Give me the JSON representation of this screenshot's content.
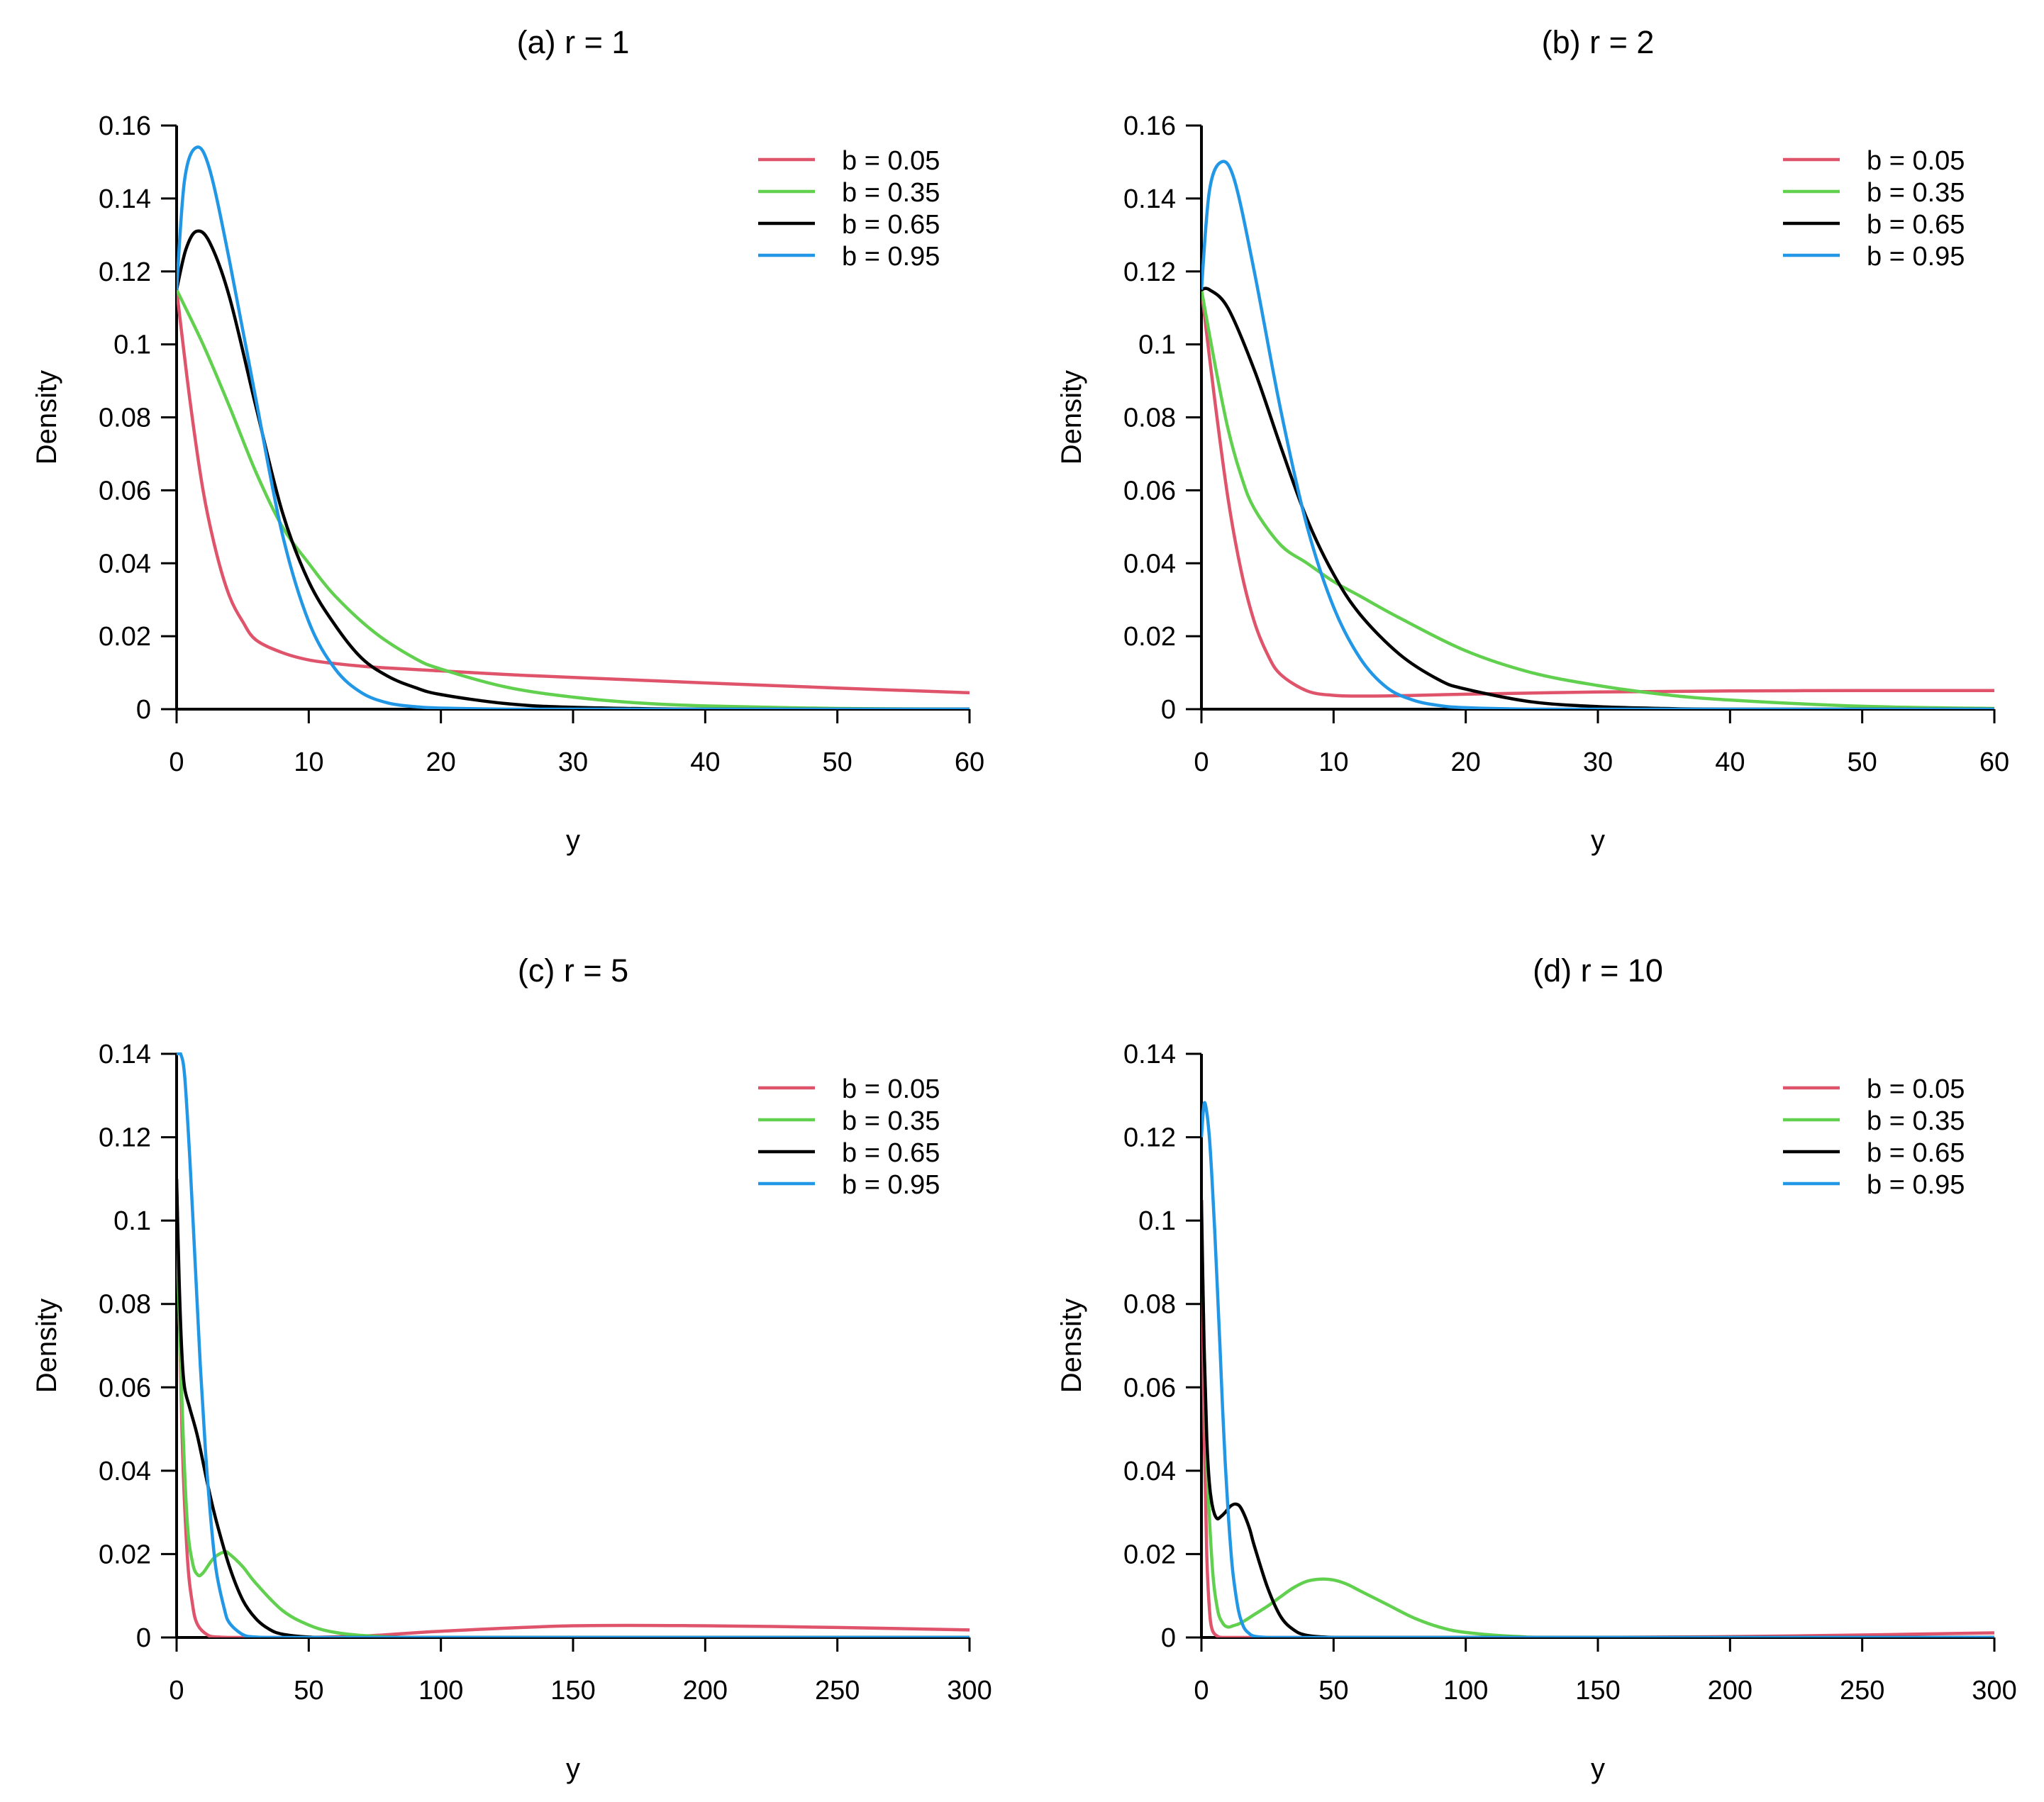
{
  "chart_data": [
    {
      "type": "line",
      "title": "(a) r = 1",
      "xlabel": "y",
      "ylabel": "Density",
      "xlim": [
        0,
        60
      ],
      "ylim": [
        0,
        0.16
      ],
      "xticks": [
        "0",
        "10",
        "20",
        "30",
        "40",
        "50",
        "60"
      ],
      "yticks": [
        "0",
        "0.02",
        "0.04",
        "0.06",
        "0.08",
        "0.1",
        "0.12",
        "0.14",
        "0.16"
      ],
      "legend_position": "top-right",
      "series": [
        {
          "name": "b = 0.05",
          "color": "#DF536B",
          "x": [
            0,
            1,
            2,
            3,
            4,
            5,
            6,
            8,
            10,
            12,
            15,
            20,
            25,
            30,
            40,
            50,
            60
          ],
          "y": [
            0.115,
            0.085,
            0.06,
            0.043,
            0.031,
            0.024,
            0.019,
            0.0155,
            0.0135,
            0.0125,
            0.0115,
            0.0105,
            0.0095,
            0.0087,
            0.0072,
            0.0058,
            0.0045
          ]
        },
        {
          "name": "b = 0.35",
          "color": "#61D04F",
          "x": [
            0,
            2,
            4,
            6,
            8,
            10,
            12,
            15,
            18,
            20,
            25,
            30,
            35,
            40,
            50,
            60
          ],
          "y": [
            0.115,
            0.1,
            0.083,
            0.065,
            0.05,
            0.04,
            0.031,
            0.021,
            0.014,
            0.011,
            0.006,
            0.0033,
            0.0017,
            0.0009,
            0.0002,
            0.0
          ]
        },
        {
          "name": "b = 0.65",
          "color": "#000000",
          "x": [
            0,
            0.7,
            1.5,
            2.5,
            4,
            6,
            8,
            10,
            12,
            14,
            16,
            18,
            20,
            25,
            30,
            40,
            60
          ],
          "y": [
            0.115,
            0.126,
            0.131,
            0.128,
            0.113,
            0.083,
            0.054,
            0.035,
            0.023,
            0.014,
            0.009,
            0.006,
            0.004,
            0.0015,
            0.0005,
            0.0,
            0.0
          ]
        },
        {
          "name": "b = 0.95",
          "color": "#2297E6",
          "x": [
            0,
            0.6,
            1.5,
            2.5,
            4,
            6,
            8,
            10,
            12,
            14,
            16,
            18,
            20,
            25,
            30,
            40,
            60
          ],
          "y": [
            0.115,
            0.145,
            0.154,
            0.148,
            0.123,
            0.085,
            0.048,
            0.024,
            0.011,
            0.0045,
            0.0017,
            0.0007,
            0.0003,
            0.0,
            0.0,
            0.0,
            0.0
          ]
        }
      ]
    },
    {
      "type": "line",
      "title": "(b) r = 2",
      "xlabel": "y",
      "ylabel": "Density",
      "xlim": [
        0,
        60
      ],
      "ylim": [
        0,
        0.16
      ],
      "xticks": [
        "0",
        "10",
        "20",
        "30",
        "40",
        "50",
        "60"
      ],
      "yticks": [
        "0",
        "0.02",
        "0.04",
        "0.06",
        "0.08",
        "0.1",
        "0.12",
        "0.14",
        "0.16"
      ],
      "legend_position": "top-right",
      "series": [
        {
          "name": "b = 0.05",
          "color": "#DF536B",
          "x": [
            0,
            1,
            2,
            3,
            4,
            5,
            6,
            8,
            10,
            12,
            15,
            20,
            30,
            40,
            50,
            60
          ],
          "y": [
            0.115,
            0.085,
            0.058,
            0.038,
            0.024,
            0.015,
            0.0095,
            0.005,
            0.0038,
            0.0036,
            0.0037,
            0.0041,
            0.0047,
            0.005,
            0.0051,
            0.0051
          ]
        },
        {
          "name": "b = 0.35",
          "color": "#61D04F",
          "x": [
            0,
            1,
            2,
            3,
            4,
            6,
            8,
            10,
            12,
            15,
            20,
            25,
            30,
            35,
            40,
            50,
            60
          ],
          "y": [
            0.115,
            0.095,
            0.077,
            0.064,
            0.055,
            0.045,
            0.04,
            0.035,
            0.031,
            0.025,
            0.016,
            0.01,
            0.0065,
            0.004,
            0.0025,
            0.0008,
            0.0002
          ]
        },
        {
          "name": "b = 0.65",
          "color": "#000000",
          "x": [
            0,
            0.6,
            2,
            4,
            6,
            8,
            10,
            12,
            15,
            18,
            20,
            25,
            30,
            35,
            40,
            60
          ],
          "y": [
            0.115,
            0.115,
            0.11,
            0.093,
            0.072,
            0.052,
            0.037,
            0.026,
            0.015,
            0.008,
            0.0055,
            0.002,
            0.0007,
            0.0002,
            0.0,
            0.0
          ]
        },
        {
          "name": "b = 0.95",
          "color": "#2297E6",
          "x": [
            0,
            0.6,
            1.5,
            2.5,
            4,
            6,
            8,
            10,
            12,
            14,
            16,
            18,
            20,
            25,
            30,
            60
          ],
          "y": [
            0.115,
            0.142,
            0.15,
            0.145,
            0.12,
            0.082,
            0.05,
            0.028,
            0.014,
            0.006,
            0.0025,
            0.001,
            0.0004,
            0.0,
            0.0,
            0.0
          ]
        }
      ]
    },
    {
      "type": "line",
      "title": "(c) r = 5",
      "xlabel": "y",
      "ylabel": "Density",
      "xlim": [
        0,
        300
      ],
      "ylim": [
        0,
        0.14
      ],
      "xticks": [
        "0",
        "50",
        "100",
        "150",
        "200",
        "250",
        "300"
      ],
      "yticks": [
        "0",
        "0.02",
        "0.04",
        "0.06",
        "0.08",
        "0.1",
        "0.12",
        "0.14"
      ],
      "legend_position": "top-right",
      "series": [
        {
          "name": "b = 0.05",
          "color": "#DF536B",
          "x": [
            0,
            2,
            4,
            6,
            8,
            12,
            16,
            20,
            30,
            50,
            75,
            100,
            150,
            200,
            250,
            300
          ],
          "y": [
            0.11,
            0.05,
            0.02,
            0.008,
            0.003,
            0.0005,
            0.0001,
            0.0,
            0.0,
            0.0,
            0.0005,
            0.0015,
            0.0028,
            0.0028,
            0.0024,
            0.0018
          ]
        },
        {
          "name": "b = 0.35",
          "color": "#61D04F",
          "x": [
            0,
            2,
            4,
            6,
            8,
            10,
            14,
            18,
            20,
            25,
            30,
            40,
            50,
            60,
            75,
            100,
            300
          ],
          "y": [
            0.1,
            0.057,
            0.028,
            0.018,
            0.015,
            0.0155,
            0.019,
            0.0205,
            0.02,
            0.017,
            0.013,
            0.0065,
            0.003,
            0.0012,
            0.0003,
            0.0,
            0.0
          ]
        },
        {
          "name": "b = 0.65",
          "color": "#000000",
          "x": [
            0,
            1,
            2,
            3,
            5,
            8,
            12,
            15,
            20,
            25,
            30,
            35,
            40,
            50,
            60,
            300
          ],
          "y": [
            0.11,
            0.085,
            0.068,
            0.06,
            0.055,
            0.048,
            0.036,
            0.028,
            0.017,
            0.009,
            0.0045,
            0.002,
            0.0008,
            0.0001,
            0.0,
            0.0
          ]
        },
        {
          "name": "b = 0.95",
          "color": "#2297E6",
          "x": [
            0,
            0.5,
            1.5,
            3,
            5,
            7,
            9,
            11,
            13,
            15,
            18,
            20,
            25,
            30,
            40,
            300
          ],
          "y": [
            0.14,
            0.14,
            0.14,
            0.135,
            0.115,
            0.09,
            0.065,
            0.044,
            0.028,
            0.016,
            0.007,
            0.0035,
            0.0007,
            0.0001,
            0.0,
            0.0
          ]
        }
      ]
    },
    {
      "type": "line",
      "title": "(d) r = 10",
      "xlabel": "y",
      "ylabel": "Density",
      "xlim": [
        0,
        300
      ],
      "ylim": [
        0,
        0.14
      ],
      "xticks": [
        "0",
        "50",
        "100",
        "150",
        "200",
        "250",
        "300"
      ],
      "yticks": [
        "0",
        "0.02",
        "0.04",
        "0.06",
        "0.08",
        "0.1",
        "0.12",
        "0.14"
      ],
      "legend_position": "top-right",
      "series": [
        {
          "name": "b = 0.05",
          "color": "#DF536B",
          "x": [
            0,
            1,
            2,
            3,
            4,
            6,
            8,
            12,
            20,
            50,
            100,
            150,
            200,
            250,
            300
          ],
          "y": [
            0.105,
            0.05,
            0.02,
            0.007,
            0.002,
            0.0003,
            0.0,
            0.0,
            0.0,
            0.0,
            0.0,
            0.0,
            0.0002,
            0.0006,
            0.0011
          ]
        },
        {
          "name": "b = 0.35",
          "color": "#61D04F",
          "x": [
            0,
            2,
            4,
            6,
            8,
            10,
            12,
            15,
            20,
            25,
            30,
            35,
            40,
            45,
            50,
            55,
            60,
            70,
            80,
            90,
            100,
            120,
            140,
            300
          ],
          "y": [
            0.1,
            0.045,
            0.018,
            0.007,
            0.0035,
            0.0025,
            0.0028,
            0.0035,
            0.0055,
            0.0075,
            0.0098,
            0.012,
            0.0135,
            0.014,
            0.0138,
            0.0128,
            0.0112,
            0.008,
            0.0048,
            0.0025,
            0.0012,
            0.0002,
            0.0,
            0.0
          ]
        },
        {
          "name": "b = 0.65",
          "color": "#000000",
          "x": [
            0,
            1,
            2,
            3,
            4,
            5,
            6,
            7,
            9,
            11,
            13,
            15,
            18,
            20,
            25,
            30,
            35,
            40,
            50,
            60,
            300
          ],
          "y": [
            0.105,
            0.07,
            0.048,
            0.037,
            0.032,
            0.0295,
            0.0285,
            0.0288,
            0.03,
            0.0315,
            0.032,
            0.031,
            0.0265,
            0.022,
            0.012,
            0.005,
            0.0018,
            0.0005,
            0.0,
            0.0,
            0.0
          ]
        },
        {
          "name": "b = 0.95",
          "color": "#2297E6",
          "x": [
            0,
            1,
            2,
            3,
            4,
            5,
            6,
            7,
            8,
            9,
            10,
            11,
            12,
            14,
            16,
            18,
            20,
            25,
            30,
            40,
            300
          ],
          "y": [
            0.12,
            0.128,
            0.126,
            0.12,
            0.11,
            0.098,
            0.084,
            0.07,
            0.055,
            0.042,
            0.031,
            0.022,
            0.015,
            0.0065,
            0.0025,
            0.001,
            0.0003,
            0.0,
            0.0,
            0.0,
            0.0
          ]
        }
      ]
    }
  ]
}
